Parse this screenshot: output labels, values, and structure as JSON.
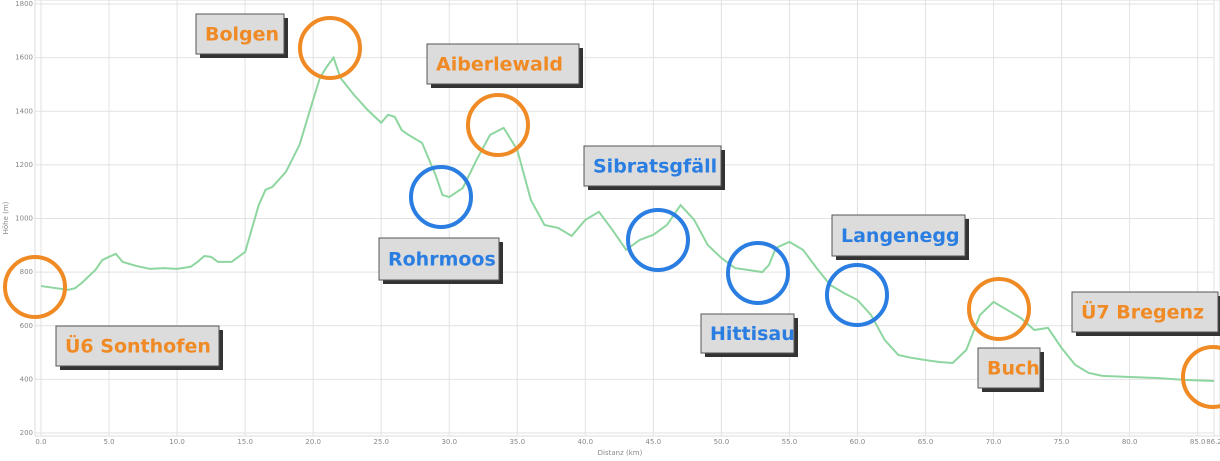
{
  "chart_data": {
    "type": "line",
    "x_label": "Distanz (km)",
    "y_label": "Höhe (m)",
    "xlim": [
      0,
      86.2
    ],
    "ylim": [
      200,
      1800
    ],
    "xticks": [
      {
        "value": 0,
        "label": "0.0"
      },
      {
        "value": 5,
        "label": "5.0"
      },
      {
        "value": 10,
        "label": "10.0"
      },
      {
        "value": 15,
        "label": "15.0"
      },
      {
        "value": 20,
        "label": "20.0"
      },
      {
        "value": 25,
        "label": "25.0"
      },
      {
        "value": 30,
        "label": "30.0"
      },
      {
        "value": 35,
        "label": "35.0"
      },
      {
        "value": 40,
        "label": "40.0"
      },
      {
        "value": 45,
        "label": "45.0"
      },
      {
        "value": 50,
        "label": "50.0"
      },
      {
        "value": 55,
        "label": "55.0"
      },
      {
        "value": 60,
        "label": "60.0"
      },
      {
        "value": 65,
        "label": "65.0"
      },
      {
        "value": 70,
        "label": "70.0"
      },
      {
        "value": 75,
        "label": "75.0"
      },
      {
        "value": 80,
        "label": "80.0"
      },
      {
        "value": 85,
        "label": "85.0"
      },
      86.2
    ],
    "yticks": [
      200,
      400,
      600,
      800,
      1000,
      1200,
      1400,
      1600,
      1800
    ],
    "grid": true,
    "series": [
      {
        "name": "Höhe",
        "color": "#8ed6a0",
        "x": [
          0,
          1,
          2,
          2.5,
          3,
          4,
          4.5,
          5,
          5.5,
          6,
          7,
          8,
          9,
          10,
          11,
          11.5,
          12,
          12.5,
          13,
          14,
          15,
          16,
          16.5,
          17,
          18,
          19,
          20,
          20.5,
          21,
          21.5,
          22,
          23,
          24,
          25,
          25.5,
          26,
          26.5,
          27,
          28,
          29,
          29.5,
          30,
          31,
          32,
          33,
          34,
          35,
          36,
          37,
          38,
          39,
          40,
          41,
          42,
          43,
          44,
          45,
          46,
          47,
          48,
          49,
          50,
          51,
          52,
          53,
          53.5,
          54,
          55,
          56,
          57,
          58,
          59,
          60,
          61,
          62,
          63,
          64,
          65,
          66,
          67,
          68,
          69,
          70,
          71,
          72,
          73,
          74,
          75,
          76,
          77,
          78,
          80,
          82,
          84,
          86.2
        ],
        "values": [
          748,
          741,
          734,
          740,
          760,
          808,
          845,
          857,
          868,
          838,
          823,
          812,
          815,
          812,
          820,
          838,
          860,
          857,
          838,
          838,
          875,
          1050,
          1107,
          1118,
          1174,
          1275,
          1443,
          1525,
          1566,
          1600,
          1525,
          1461,
          1405,
          1357,
          1387,
          1379,
          1330,
          1312,
          1282,
          1162,
          1088,
          1080,
          1114,
          1218,
          1312,
          1338,
          1256,
          1069,
          976,
          965,
          935,
          995,
          1025,
          957,
          883,
          920,
          939,
          976,
          1050,
          995,
          901,
          853,
          815,
          808,
          800,
          827,
          890,
          913,
          883,
          815,
          752,
          722,
          696,
          640,
          547,
          491,
          480,
          472,
          465,
          461,
          510,
          640,
          689,
          659,
          629,
          584,
          592,
          517,
          454,
          424,
          413,
          409,
          405,
          398,
          394
        ]
      }
    ],
    "annotations": [
      {
        "text": "Bolgen",
        "color": "#f08a24"
      },
      {
        "text": "Aiberlewald",
        "color": "#f08a24"
      },
      {
        "text": "Rohrmoos",
        "color": "#2a7de1"
      },
      {
        "text": "Sibratsgfäll",
        "color": "#2a7de1"
      },
      {
        "text": "Hittisau",
        "color": "#2a7de1"
      },
      {
        "text": "Langenegg",
        "color": "#2a7de1"
      },
      {
        "text": "Ü6 Sonthofen",
        "color": "#f08a24"
      },
      {
        "text": "Buch",
        "color": "#f08a24"
      },
      {
        "text": "Ü7 Bregenz",
        "color": "#f08a24"
      }
    ]
  }
}
